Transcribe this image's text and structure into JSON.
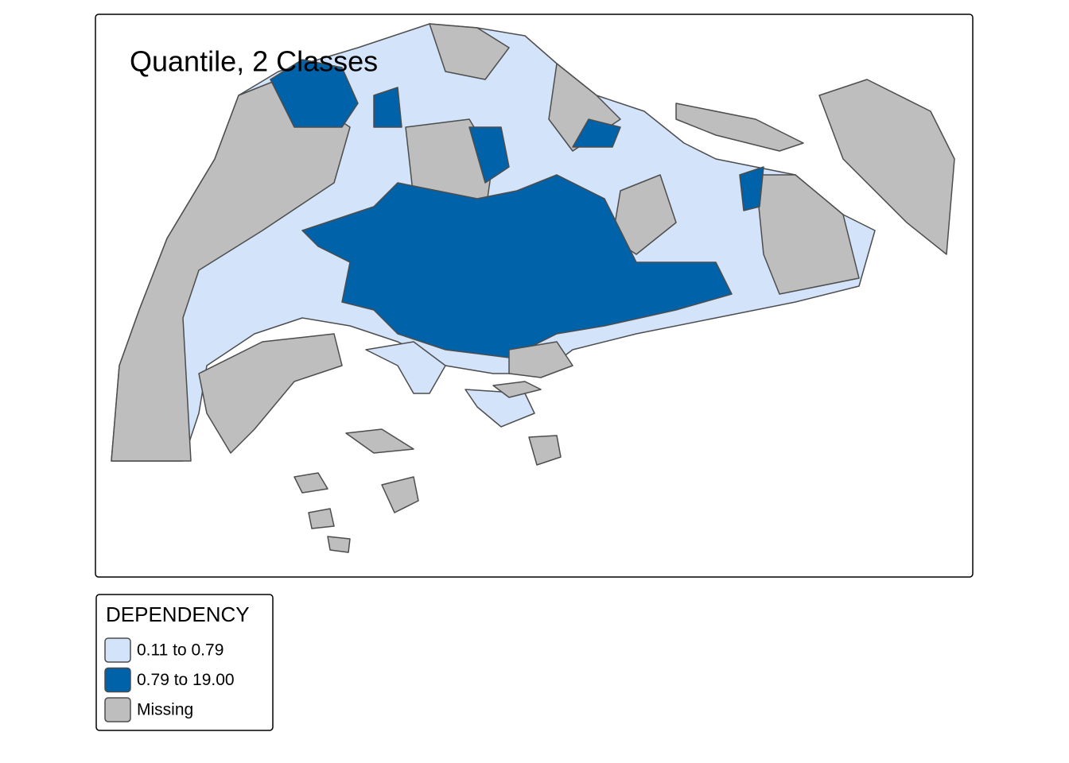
{
  "map": {
    "title": "Quantile, 2 Classes",
    "legend": {
      "title": "DEPENDENCY",
      "items": [
        {
          "label": "0.11 to 0.79",
          "color": "#d2e3fa"
        },
        {
          "label": "0.79 to 19.00",
          "color": "#0062a8"
        },
        {
          "label": "Missing",
          "color": "#bebebe"
        }
      ]
    }
  }
}
